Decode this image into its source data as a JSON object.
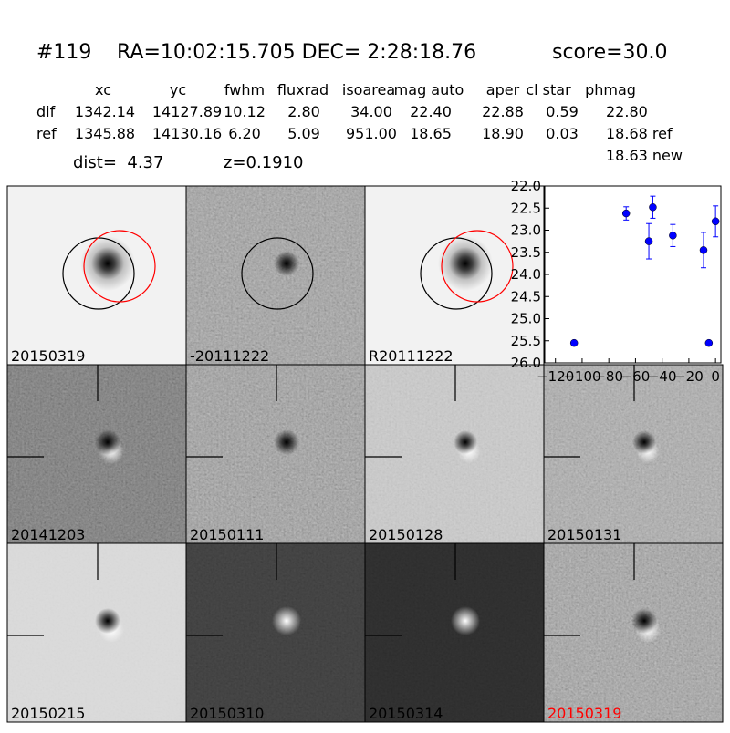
{
  "header": {
    "id": "#119",
    "coords": "RA=10:02:15.705 DEC= 2:28:18.76",
    "score": "score=30.0"
  },
  "table": {
    "columns": [
      "xc",
      "yc",
      "fwhm",
      "fluxrad",
      "isoarea",
      "mag auto",
      "aper",
      "cl star",
      "phmag"
    ],
    "rows": [
      {
        "label": "dif",
        "cells": [
          "1342.14",
          "14127.89",
          "10.12",
          "2.80",
          "34.00",
          "22.40",
          "22.88",
          "0.59",
          "22.80"
        ]
      },
      {
        "label": "ref",
        "cells": [
          "1345.88",
          "14130.16",
          "6.20",
          "5.09",
          "951.00",
          "18.65",
          "18.90",
          "0.03",
          "18.68 ref"
        ]
      }
    ],
    "extra": "18.63 new"
  },
  "info": {
    "dist": "dist=  4.37",
    "z": "z=0.1910"
  },
  "panels": [
    "20150319",
    "-20111222",
    "R20111222",
    "20141203",
    "20150111",
    "20150128",
    "20150131",
    "20150215",
    "20150310",
    "20150314",
    "20150319"
  ],
  "chart_data": {
    "type": "scatter",
    "x": [
      -106,
      -67,
      -50,
      -47,
      -32,
      -9,
      -5,
      0
    ],
    "series": [
      {
        "values": [
          25.55,
          22.62,
          23.25,
          22.48,
          23.12,
          23.45,
          25.55,
          22.8
        ],
        "errors": [
          0.05,
          0.15,
          0.4,
          0.25,
          0.25,
          0.4,
          0.05,
          0.35
        ],
        "color": "#0000ff"
      }
    ],
    "xlim": [
      -128,
      4
    ],
    "ylim": [
      26,
      22
    ],
    "xticks": [
      {
        "value": -120,
        "label": "−120"
      },
      {
        "value": -100,
        "label": "−100"
      },
      {
        "value": -80,
        "label": "−80"
      },
      {
        "value": -60,
        "label": "−60"
      },
      {
        "value": -40,
        "label": "−40"
      },
      {
        "value": -20,
        "label": "−20"
      },
      0
    ],
    "yticks": [
      {
        "value": 22,
        "label": "22.0"
      },
      22.5,
      {
        "value": 23,
        "label": "23.0"
      },
      23.5,
      {
        "value": 24,
        "label": "24.0"
      },
      24.5,
      {
        "value": 25,
        "label": "25.0"
      },
      25.5,
      {
        "value": 26,
        "label": "26.0"
      }
    ]
  }
}
